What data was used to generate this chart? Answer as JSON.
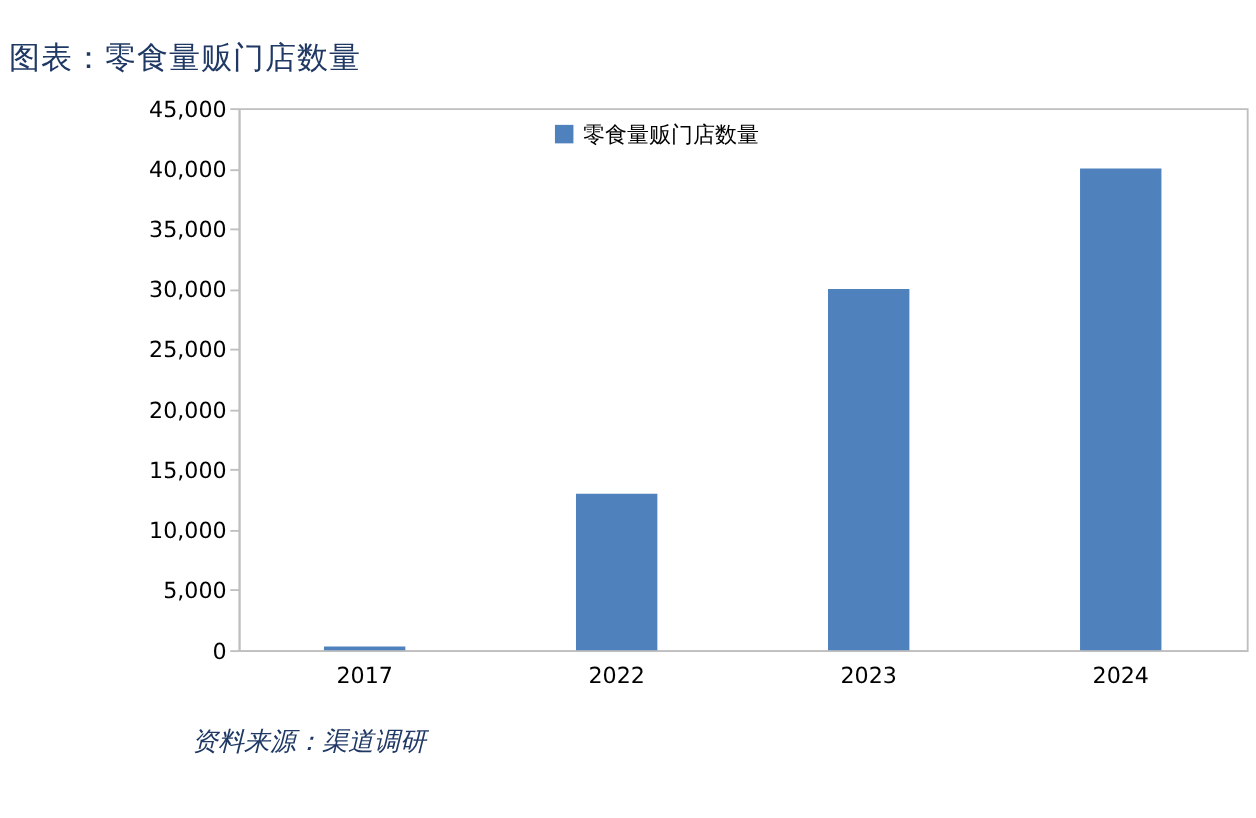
{
  "chart_data": {
    "type": "bar",
    "title": "图表：零食量贩门店数量",
    "categories": [
      "2017",
      "2022",
      "2023",
      "2024"
    ],
    "series": [
      {
        "name": "零食量贩门店数量",
        "color": "#4f81bd",
        "values": [
          300,
          13000,
          30000,
          40000
        ]
      }
    ],
    "ylim": [
      0,
      45000
    ],
    "yticks": [
      {
        "value": 0,
        "label": "0"
      },
      {
        "value": 5000,
        "label": "5,000"
      },
      {
        "value": 10000,
        "label": "10,000"
      },
      {
        "value": 15000,
        "label": "15,000"
      },
      {
        "value": 20000,
        "label": "20,000"
      },
      {
        "value": 25000,
        "label": "25,000"
      },
      {
        "value": 30000,
        "label": "30,000"
      },
      {
        "value": 35000,
        "label": "35,000"
      },
      {
        "value": 40000,
        "label": "40,000"
      },
      {
        "value": 45000,
        "label": "45,000"
      }
    ],
    "legend": "top",
    "grid": false,
    "annotations": [
      "资料来源：渠道调研"
    ]
  }
}
